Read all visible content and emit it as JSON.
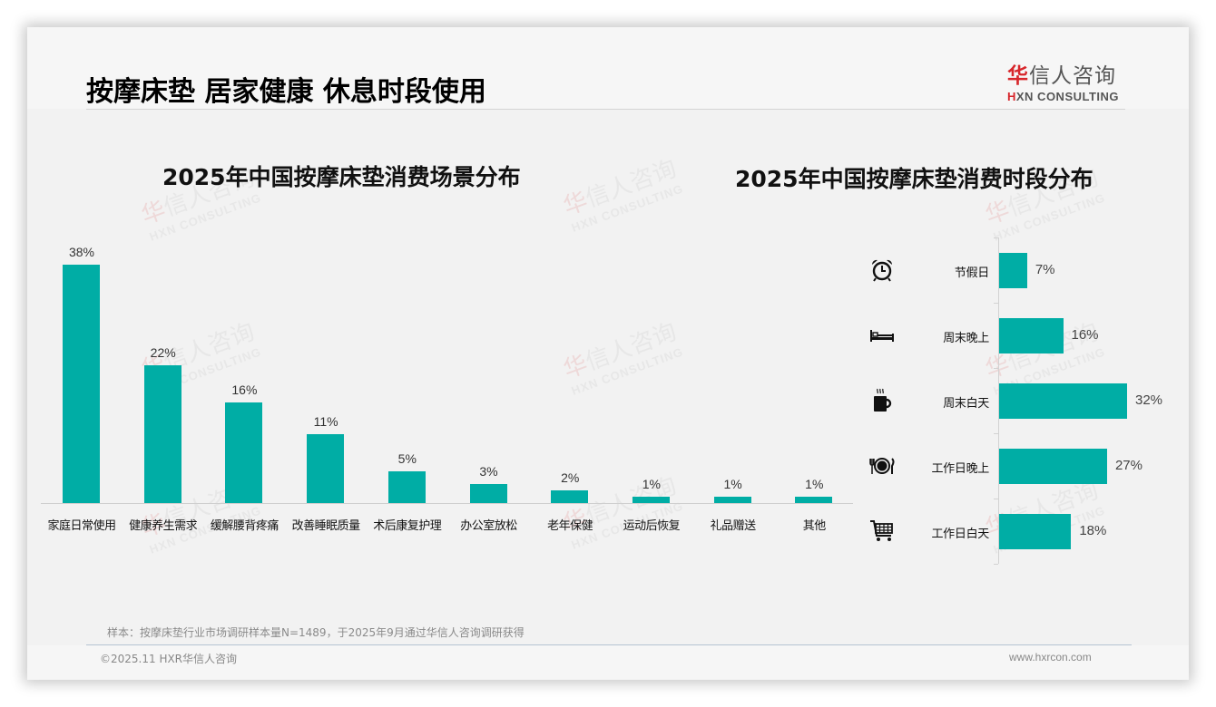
{
  "page": {
    "title": "按摩床垫 居家健康 休息时段使用",
    "logo": {
      "cn_first": "华",
      "cn_rest": "信人咨询",
      "en_first": "H",
      "en_rest": "XN CONSULTING"
    },
    "watermark": {
      "cn_first": "华",
      "cn_rest": "信人咨询",
      "en": "HXN CONSULTING"
    },
    "note": "样本：按摩床垫行业市场调研样本量N=1489，于2025年9月通过华信人咨询调研获得",
    "copyright": "©2025.11 HXR华信人咨询",
    "url": "www.hxrcon.com",
    "accent_color": "#00ada5",
    "brand_red": "#d7262b"
  },
  "chart_data": [
    {
      "type": "bar",
      "title": "2025年中国按摩床垫消费场景分布",
      "orientation": "vertical",
      "categories": [
        "家庭日常使用",
        "健康养生需求",
        "缓解腰背疼痛",
        "改善睡眠质量",
        "术后康复护理",
        "办公室放松",
        "老年保健",
        "运动后恢复",
        "礼品赠送",
        "其他"
      ],
      "values": [
        38,
        22,
        16,
        11,
        5,
        3,
        2,
        1,
        1,
        1
      ],
      "labels": [
        "38%",
        "22%",
        "16%",
        "11%",
        "5%",
        "3%",
        "2%",
        "1%",
        "1%",
        "1%"
      ],
      "unit": "%",
      "xlabel": "",
      "ylabel": "",
      "ylim": [
        0,
        38
      ],
      "grid": false,
      "legend": "none",
      "color": "#00ada5"
    },
    {
      "type": "bar",
      "title": "2025年中国按摩床垫消费时段分布",
      "orientation": "horizontal",
      "categories": [
        "节假日",
        "周末晚上",
        "周末白天",
        "工作日晚上",
        "工作日白天"
      ],
      "values": [
        7,
        16,
        32,
        27,
        18
      ],
      "labels": [
        "7%",
        "16%",
        "32%",
        "27%",
        "18%"
      ],
      "icons": [
        "alarm-clock-icon",
        "bed-icon",
        "coffee-mug-icon",
        "plate-cutlery-icon",
        "shopping-cart-icon"
      ],
      "unit": "%",
      "xlabel": "",
      "ylabel": "",
      "xlim": [
        0,
        32
      ],
      "grid": false,
      "legend": "none",
      "color": "#00ada5"
    }
  ]
}
